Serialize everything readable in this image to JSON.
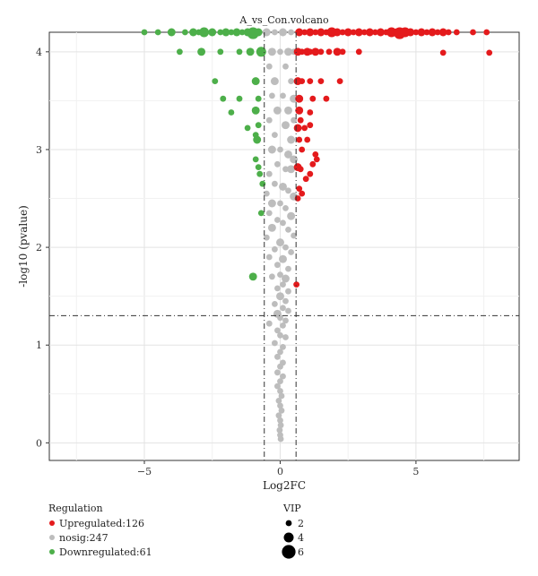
{
  "chart_data": {
    "type": "scatter",
    "title": "A_vs_Con.volcano",
    "xlabel": "Log2FC",
    "ylabel": "-log10 (pvalue)",
    "xlim": [
      -8.5,
      8.8
    ],
    "ylim": [
      -0.18,
      4.2
    ],
    "x_ticks": [
      -5,
      0,
      5
    ],
    "y_ticks": [
      0,
      1,
      2,
      3,
      4
    ],
    "grid": true,
    "fc_threshold_lines": [
      -0.585,
      0.585
    ],
    "pvalue_threshold_line": 1.301,
    "legend": {
      "title": "Regulation",
      "placement": "bottom-left",
      "entries": [
        {
          "label": "Upregulated:126",
          "color": "#e41a1c"
        },
        {
          "label": "nosig:247",
          "color": "#bdbdbd"
        },
        {
          "label": "Downregulated:61",
          "color": "#4daf4a"
        }
      ]
    },
    "size_legend": {
      "title": "VIP",
      "placement": "bottom-center",
      "entries": [
        {
          "label": "2",
          "vip": 2
        },
        {
          "label": "4",
          "vip": 4
        },
        {
          "label": "6",
          "vip": 6
        }
      ]
    },
    "series": [
      {
        "name": "Upregulated:126",
        "color": "#e41a1c",
        "points": [
          [
            0.7,
            4.2,
            3
          ],
          [
            0.9,
            4.2,
            2
          ],
          [
            1.1,
            4.2,
            3
          ],
          [
            1.3,
            4.2,
            2
          ],
          [
            1.5,
            4.2,
            3
          ],
          [
            1.7,
            4.2,
            2
          ],
          [
            1.9,
            4.2,
            4
          ],
          [
            2.1,
            4.2,
            3
          ],
          [
            2.3,
            4.2,
            2
          ],
          [
            2.5,
            4.2,
            3
          ],
          [
            2.7,
            4.2,
            2
          ],
          [
            2.9,
            4.2,
            3
          ],
          [
            3.1,
            4.2,
            2
          ],
          [
            3.3,
            4.2,
            3
          ],
          [
            3.5,
            4.2,
            2
          ],
          [
            3.7,
            4.2,
            3
          ],
          [
            3.9,
            4.2,
            2
          ],
          [
            4.1,
            4.2,
            4
          ],
          [
            4.3,
            4.2,
            3
          ],
          [
            4.4,
            4.19,
            5
          ],
          [
            4.6,
            4.2,
            4
          ],
          [
            4.8,
            4.2,
            3
          ],
          [
            5.0,
            4.2,
            2
          ],
          [
            5.2,
            4.2,
            3
          ],
          [
            5.4,
            4.2,
            2
          ],
          [
            5.6,
            4.2,
            3
          ],
          [
            5.8,
            4.2,
            2
          ],
          [
            6.0,
            4.2,
            3
          ],
          [
            6.2,
            4.2,
            2
          ],
          [
            6.5,
            4.2,
            2
          ],
          [
            7.1,
            4.2,
            2
          ],
          [
            7.6,
            4.2,
            2
          ],
          [
            0.65,
            4.0,
            3
          ],
          [
            0.8,
            4.0,
            2
          ],
          [
            1.0,
            4.0,
            3
          ],
          [
            1.1,
            4.0,
            2
          ],
          [
            1.3,
            4.0,
            3
          ],
          [
            1.5,
            4.0,
            2
          ],
          [
            1.8,
            4.0,
            2
          ],
          [
            2.1,
            4.0,
            3
          ],
          [
            2.3,
            4.0,
            2
          ],
          [
            2.9,
            4.0,
            2
          ],
          [
            6.0,
            3.99,
            2
          ],
          [
            7.7,
            3.99,
            2
          ],
          [
            0.65,
            3.7,
            3
          ],
          [
            0.8,
            3.7,
            2
          ],
          [
            1.1,
            3.7,
            2
          ],
          [
            1.5,
            3.7,
            2
          ],
          [
            2.2,
            3.7,
            2
          ],
          [
            0.7,
            3.52,
            3
          ],
          [
            1.2,
            3.52,
            2
          ],
          [
            1.7,
            3.52,
            2
          ],
          [
            0.7,
            3.4,
            3
          ],
          [
            1.1,
            3.38,
            2
          ],
          [
            0.75,
            3.3,
            2
          ],
          [
            0.9,
            3.22,
            2
          ],
          [
            0.65,
            3.22,
            3
          ],
          [
            1.1,
            3.25,
            2
          ],
          [
            0.7,
            3.1,
            2
          ],
          [
            1.0,
            3.1,
            2
          ],
          [
            0.8,
            3.0,
            2
          ],
          [
            1.3,
            2.95,
            2
          ],
          [
            1.35,
            2.9,
            2
          ],
          [
            1.2,
            2.85,
            2
          ],
          [
            0.65,
            2.82,
            3
          ],
          [
            0.75,
            2.8,
            2
          ],
          [
            1.1,
            2.75,
            2
          ],
          [
            0.95,
            2.7,
            2
          ],
          [
            0.7,
            2.6,
            2
          ],
          [
            0.8,
            2.55,
            2
          ],
          [
            0.65,
            2.5,
            2
          ],
          [
            0.6,
            1.62,
            2
          ]
        ]
      },
      {
        "name": "nosig:247",
        "color": "#bdbdbd",
        "points": [
          [
            -0.5,
            4.2,
            3
          ],
          [
            -0.2,
            4.2,
            2
          ],
          [
            0.1,
            4.2,
            3
          ],
          [
            0.4,
            4.2,
            2
          ],
          [
            -0.3,
            4.0,
            3
          ],
          [
            0.0,
            4.0,
            2
          ],
          [
            0.3,
            4.0,
            3
          ],
          [
            0.5,
            4.0,
            2
          ],
          [
            -0.4,
            3.85,
            2
          ],
          [
            0.2,
            3.85,
            2
          ],
          [
            -0.2,
            3.7,
            3
          ],
          [
            0.4,
            3.7,
            2
          ],
          [
            0.1,
            3.55,
            2
          ],
          [
            -0.3,
            3.55,
            2
          ],
          [
            0.5,
            3.52,
            3
          ],
          [
            -0.1,
            3.4,
            3
          ],
          [
            0.3,
            3.4,
            3
          ],
          [
            -0.4,
            3.3,
            2
          ],
          [
            0.2,
            3.25,
            3
          ],
          [
            0.5,
            3.3,
            2
          ],
          [
            -0.2,
            3.15,
            2
          ],
          [
            0.4,
            3.1,
            3
          ],
          [
            -0.3,
            3.0,
            3
          ],
          [
            0.0,
            3.0,
            2
          ],
          [
            0.3,
            2.95,
            3
          ],
          [
            0.5,
            2.9,
            3
          ],
          [
            -0.1,
            2.85,
            2
          ],
          [
            0.2,
            2.8,
            2
          ],
          [
            0.4,
            2.8,
            3
          ],
          [
            -0.4,
            2.75,
            2
          ],
          [
            -0.2,
            2.65,
            2
          ],
          [
            0.1,
            2.62,
            3
          ],
          [
            0.3,
            2.58,
            2
          ],
          [
            -0.5,
            2.55,
            2
          ],
          [
            0.5,
            2.52,
            3
          ],
          [
            -0.3,
            2.45,
            3
          ],
          [
            0.0,
            2.45,
            2
          ],
          [
            0.2,
            2.4,
            2
          ],
          [
            -0.4,
            2.35,
            2
          ],
          [
            0.4,
            2.32,
            3
          ],
          [
            -0.1,
            2.28,
            2
          ],
          [
            0.1,
            2.25,
            2
          ],
          [
            -0.3,
            2.2,
            3
          ],
          [
            0.3,
            2.18,
            2
          ],
          [
            0.5,
            2.12,
            2
          ],
          [
            -0.5,
            2.1,
            2
          ],
          [
            0.0,
            2.05,
            3
          ],
          [
            0.2,
            2.0,
            2
          ],
          [
            -0.2,
            1.98,
            2
          ],
          [
            0.4,
            1.95,
            2
          ],
          [
            -0.4,
            1.9,
            2
          ],
          [
            0.1,
            1.88,
            3
          ],
          [
            -0.1,
            1.82,
            2
          ],
          [
            0.3,
            1.78,
            2
          ],
          [
            0.0,
            1.72,
            2
          ],
          [
            -0.3,
            1.7,
            2
          ],
          [
            0.2,
            1.68,
            3
          ],
          [
            0.1,
            1.62,
            2
          ],
          [
            -0.1,
            1.58,
            2
          ],
          [
            0.3,
            1.55,
            2
          ],
          [
            0.0,
            1.5,
            3
          ],
          [
            0.2,
            1.45,
            2
          ],
          [
            -0.2,
            1.42,
            2
          ],
          [
            0.1,
            1.38,
            2
          ],
          [
            0.3,
            1.35,
            2
          ],
          [
            -0.1,
            1.32,
            3
          ],
          [
            0.0,
            1.28,
            2
          ],
          [
            0.2,
            1.25,
            2
          ],
          [
            -0.4,
            1.22,
            2
          ],
          [
            0.1,
            1.2,
            2
          ],
          [
            -0.1,
            1.15,
            2
          ],
          [
            0.0,
            1.1,
            2
          ],
          [
            0.2,
            1.08,
            2
          ],
          [
            -0.2,
            1.02,
            2
          ],
          [
            0.1,
            0.98,
            2
          ],
          [
            0.0,
            0.93,
            2
          ],
          [
            -0.1,
            0.88,
            2
          ],
          [
            0.1,
            0.82,
            2
          ],
          [
            0.0,
            0.78,
            2
          ],
          [
            -0.1,
            0.72,
            2
          ],
          [
            0.1,
            0.68,
            2
          ],
          [
            0.0,
            0.63,
            2
          ],
          [
            -0.1,
            0.58,
            2
          ],
          [
            0.0,
            0.53,
            2
          ],
          [
            0.05,
            0.48,
            2
          ],
          [
            -0.05,
            0.43,
            2
          ],
          [
            0.0,
            0.38,
            2
          ],
          [
            0.05,
            0.33,
            2
          ],
          [
            -0.05,
            0.28,
            2
          ],
          [
            0.0,
            0.23,
            2
          ],
          [
            0.02,
            0.18,
            2
          ],
          [
            -0.02,
            0.13,
            2
          ],
          [
            0.0,
            0.08,
            2
          ],
          [
            0.02,
            0.04,
            2
          ]
        ]
      },
      {
        "name": "Downregulated:61",
        "color": "#4daf4a",
        "points": [
          [
            -5.0,
            4.2,
            2
          ],
          [
            -4.5,
            4.2,
            2
          ],
          [
            -4.0,
            4.2,
            3
          ],
          [
            -3.5,
            4.2,
            2
          ],
          [
            -3.2,
            4.2,
            3
          ],
          [
            -3.0,
            4.2,
            2
          ],
          [
            -2.8,
            4.2,
            4
          ],
          [
            -2.5,
            4.2,
            3
          ],
          [
            -2.2,
            4.2,
            2
          ],
          [
            -2.0,
            4.2,
            3
          ],
          [
            -1.8,
            4.2,
            2
          ],
          [
            -1.6,
            4.2,
            3
          ],
          [
            -1.4,
            4.2,
            2
          ],
          [
            -1.2,
            4.2,
            3
          ],
          [
            -1.0,
            4.19,
            5
          ],
          [
            -0.8,
            4.2,
            3
          ],
          [
            -3.7,
            4.0,
            2
          ],
          [
            -2.9,
            4.0,
            3
          ],
          [
            -2.2,
            4.0,
            2
          ],
          [
            -1.5,
            4.0,
            2
          ],
          [
            -1.1,
            4.0,
            3
          ],
          [
            -0.7,
            4.0,
            4
          ],
          [
            -2.4,
            3.7,
            2
          ],
          [
            -0.9,
            3.7,
            3
          ],
          [
            -2.1,
            3.52,
            2
          ],
          [
            -1.5,
            3.52,
            2
          ],
          [
            -0.8,
            3.52,
            2
          ],
          [
            -0.9,
            3.4,
            3
          ],
          [
            -1.8,
            3.38,
            2
          ],
          [
            -0.8,
            3.25,
            2
          ],
          [
            -1.2,
            3.22,
            2
          ],
          [
            -0.9,
            3.15,
            2
          ],
          [
            -0.85,
            3.1,
            3
          ],
          [
            -0.9,
            2.9,
            2
          ],
          [
            -0.8,
            2.82,
            2
          ],
          [
            -0.75,
            2.75,
            2
          ],
          [
            -0.65,
            2.65,
            2
          ],
          [
            -0.7,
            2.35,
            2
          ],
          [
            -1.0,
            1.7,
            3
          ]
        ]
      }
    ]
  }
}
